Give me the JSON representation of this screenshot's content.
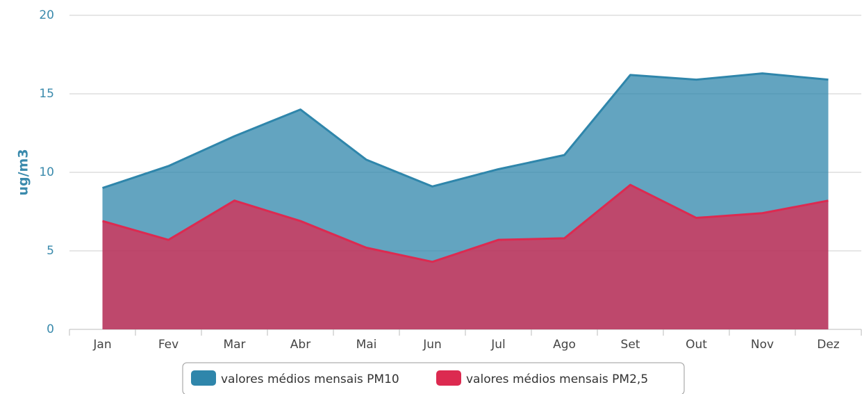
{
  "chart_data": {
    "type": "area",
    "y_label": "ug/m3",
    "categories": [
      "Jan",
      "Fev",
      "Mar",
      "Abr",
      "Mai",
      "Jun",
      "Jul",
      "Ago",
      "Set",
      "Out",
      "Nov",
      "Dez"
    ],
    "series": [
      {
        "name": "valores médios mensais PM10",
        "color": "#2f86ab",
        "values": [
          9.0,
          10.4,
          12.3,
          14.0,
          10.8,
          9.1,
          10.2,
          11.1,
          16.2,
          15.9,
          16.3,
          15.9
        ]
      },
      {
        "name": "valores médios mensais PM2,5",
        "color": "#dc2a50",
        "values": [
          6.9,
          5.7,
          8.2,
          6.9,
          5.2,
          4.3,
          5.7,
          5.8,
          9.2,
          7.1,
          7.4,
          8.2
        ]
      }
    ],
    "ylim": [
      0,
      20
    ],
    "yticks": [
      0,
      5,
      10,
      15,
      20
    ],
    "grid": true,
    "legend": "bottom"
  }
}
